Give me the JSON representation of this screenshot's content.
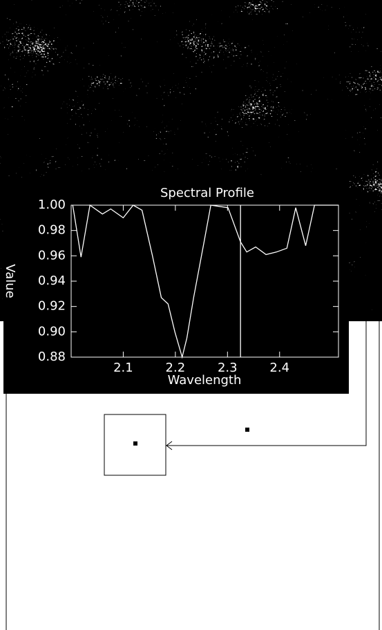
{
  "chart_data": {
    "type": "line",
    "title": "Spectral Profile",
    "x_label": "Wavelength",
    "y_label": "Value",
    "x": [
      2.003,
      2.019,
      2.036,
      2.06,
      2.076,
      2.1,
      2.119,
      2.136,
      2.156,
      2.173,
      2.186,
      2.199,
      2.213,
      2.222,
      2.235,
      2.255,
      2.268,
      2.301,
      2.325,
      2.337,
      2.354,
      2.374,
      2.394,
      2.414,
      2.431,
      2.45,
      2.467,
      2.513
    ],
    "values": [
      1.0,
      0.959,
      1.0,
      0.993,
      0.997,
      0.99,
      1.0,
      0.996,
      0.96,
      0.927,
      0.922,
      0.9,
      0.88,
      0.895,
      0.927,
      0.971,
      1.0,
      0.998,
      0.971,
      0.963,
      0.967,
      0.961,
      0.963,
      0.966,
      0.998,
      0.968,
      1.0,
      1.0
    ],
    "color": "#ffffff",
    "cursor_x": 2.325,
    "xlim": [
      2.0,
      2.513
    ],
    "xticks": [
      2.1,
      2.2,
      2.3,
      2.4
    ],
    "ylim": [
      0.88,
      1.0
    ],
    "yticks": [
      0.88,
      {
        "value": 0.9,
        "label": "0.90"
      },
      0.92,
      0.94,
      0.96,
      0.98,
      {
        "value": 1.0,
        "label": "1.00"
      }
    ]
  }
}
